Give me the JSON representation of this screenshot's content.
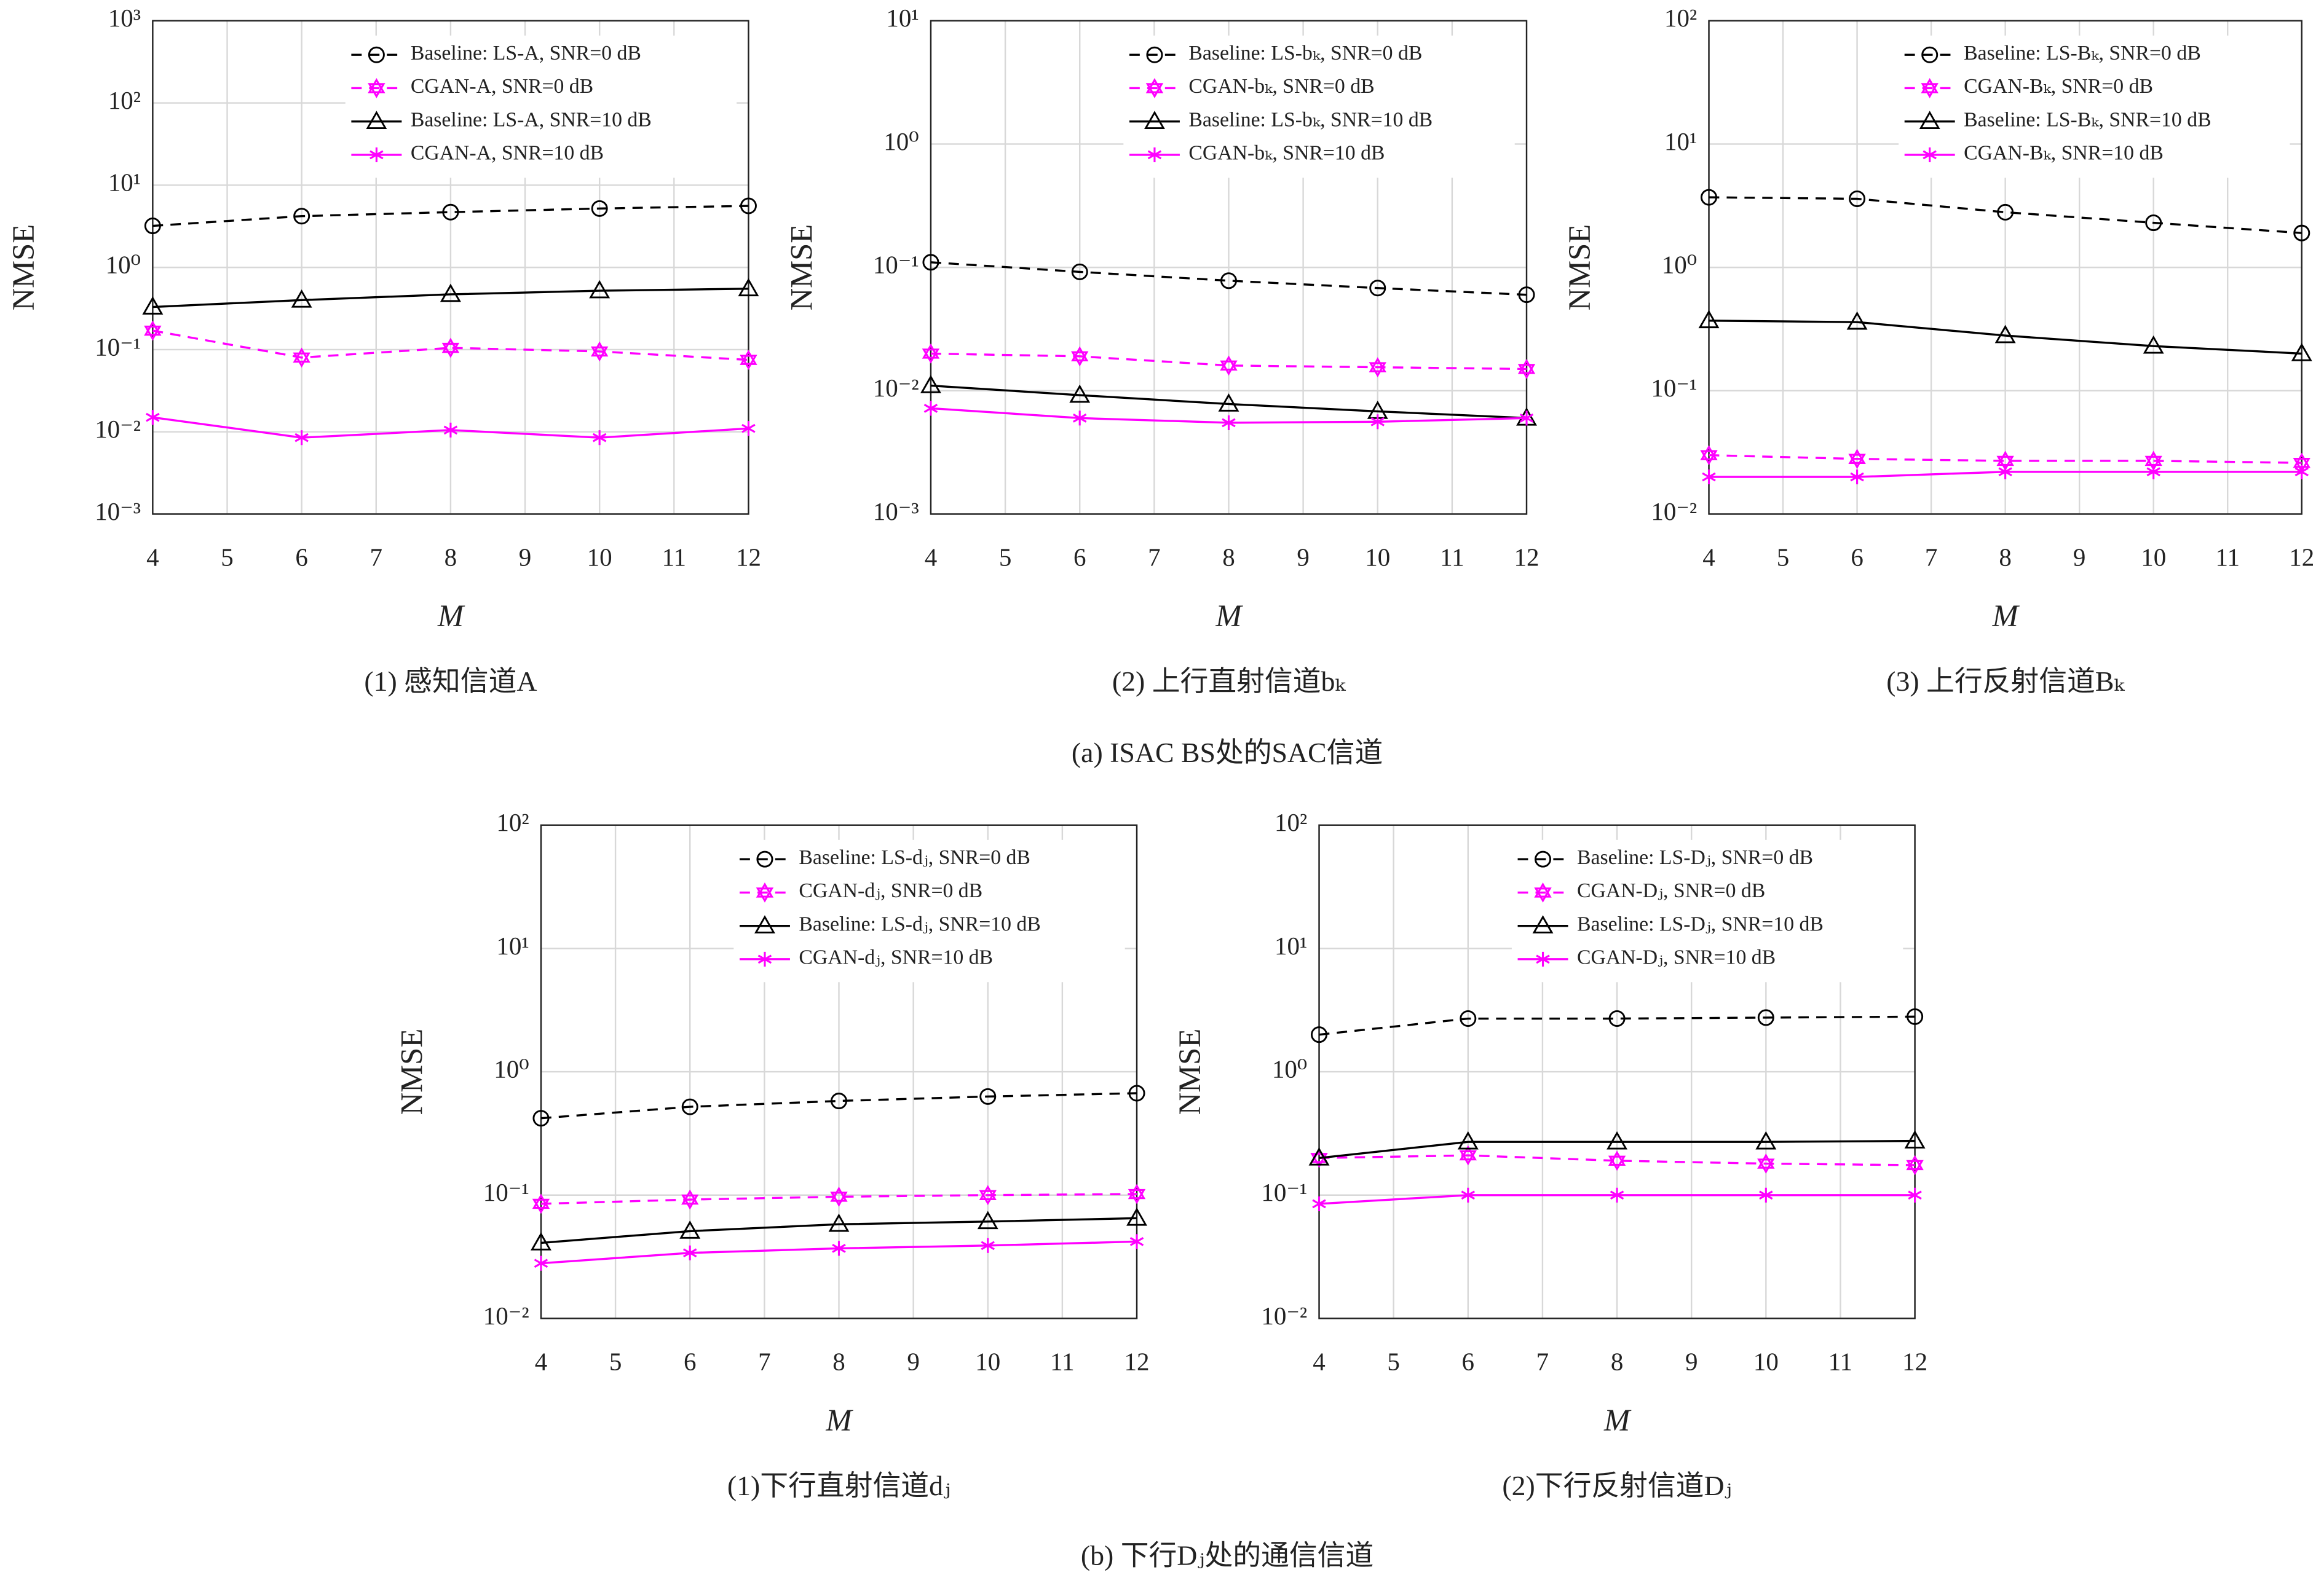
{
  "group_captions": [
    "(a) ISAC BS处的SAC信道",
    "(b) 下行Dⱼ处的通信信道"
  ],
  "chart_data": [
    {
      "type": "line",
      "subtitle": "(1) 感知信道A",
      "xlabel": "M",
      "ylabel": "NMSE",
      "log_y": true,
      "grid": true,
      "legend": "upper right",
      "x": [
        4,
        6,
        8,
        10,
        12
      ],
      "xlim": [
        4,
        12
      ],
      "xticks": [
        4,
        5,
        6,
        7,
        8,
        9,
        10,
        11,
        12
      ],
      "ylim": [
        0.001,
        1000
      ],
      "yticks": [
        {
          "value": 0.001,
          "label": "10⁻³"
        },
        {
          "value": 0.01,
          "label": "10⁻²"
        },
        {
          "value": 0.1,
          "label": "10⁻¹"
        },
        {
          "value": 1,
          "label": "10⁰"
        },
        {
          "value": 10,
          "label": "10¹"
        },
        {
          "value": 100,
          "label": "10²"
        },
        {
          "value": 1000,
          "label": "10³"
        }
      ],
      "series": [
        {
          "name": "Baseline: LS-A, SNR=0 dB",
          "color": "#000000",
          "dash": true,
          "marker": "circle",
          "values": [
            3.2,
            4.2,
            4.7,
            5.2,
            5.6
          ]
        },
        {
          "name": "CGAN-A, SNR=0 dB",
          "color": "#ff00ff",
          "dash": true,
          "marker": "hexagram",
          "values": [
            0.17,
            0.08,
            0.105,
            0.095,
            0.075
          ]
        },
        {
          "name": "Baseline: LS-A, SNR=10 dB",
          "color": "#000000",
          "dash": false,
          "marker": "triangle",
          "values": [
            0.33,
            0.4,
            0.47,
            0.52,
            0.55
          ]
        },
        {
          "name": "CGAN-A, SNR=10 dB",
          "color": "#ff00ff",
          "dash": false,
          "marker": "asterisk",
          "values": [
            0.015,
            0.0085,
            0.0105,
            0.0085,
            0.011
          ]
        }
      ]
    },
    {
      "type": "line",
      "subtitle": "(2) 上行直射信道bₖ",
      "xlabel": "M",
      "ylabel": "NMSE",
      "log_y": true,
      "grid": true,
      "legend": "upper right",
      "x": [
        4,
        6,
        8,
        10,
        12
      ],
      "xlim": [
        4,
        12
      ],
      "xticks": [
        4,
        5,
        6,
        7,
        8,
        9,
        10,
        11,
        12
      ],
      "ylim": [
        0.001,
        10
      ],
      "yticks": [
        {
          "value": 0.001,
          "label": "10⁻³"
        },
        {
          "value": 0.01,
          "label": "10⁻²"
        },
        {
          "value": 0.1,
          "label": "10⁻¹"
        },
        {
          "value": 1,
          "label": "10⁰"
        },
        {
          "value": 10,
          "label": "10¹"
        }
      ],
      "series": [
        {
          "name": "Baseline: LS-bₖ, SNR=0 dB",
          "color": "#000000",
          "dash": true,
          "marker": "circle",
          "values": [
            0.11,
            0.092,
            0.078,
            0.068,
            0.06
          ]
        },
        {
          "name": "CGAN-bₖ, SNR=0 dB",
          "color": "#ff00ff",
          "dash": true,
          "marker": "hexagram",
          "values": [
            0.02,
            0.019,
            0.016,
            0.0155,
            0.015
          ]
        },
        {
          "name": "Baseline: LS-bₖ, SNR=10 dB",
          "color": "#000000",
          "dash": false,
          "marker": "triangle",
          "values": [
            0.011,
            0.0092,
            0.0078,
            0.0068,
            0.006
          ]
        },
        {
          "name": "CGAN-bₖ, SNR=10 dB",
          "color": "#ff00ff",
          "dash": false,
          "marker": "asterisk",
          "values": [
            0.0072,
            0.006,
            0.0055,
            0.0056,
            0.006
          ]
        }
      ]
    },
    {
      "type": "line",
      "subtitle": "(3) 上行反射信道Bₖ",
      "xlabel": "M",
      "ylabel": "NMSE",
      "log_y": true,
      "grid": true,
      "legend": "upper right",
      "x": [
        4,
        6,
        8,
        10,
        12
      ],
      "xlim": [
        4,
        12
      ],
      "xticks": [
        4,
        5,
        6,
        7,
        8,
        9,
        10,
        11,
        12
      ],
      "ylim": [
        0.01,
        100
      ],
      "yticks": [
        {
          "value": 0.01,
          "label": "10⁻²"
        },
        {
          "value": 0.1,
          "label": "10⁻¹"
        },
        {
          "value": 1,
          "label": "10⁰"
        },
        {
          "value": 10,
          "label": "10¹"
        },
        {
          "value": 100,
          "label": "10²"
        }
      ],
      "series": [
        {
          "name": "Baseline: LS-Bₖ, SNR=0 dB",
          "color": "#000000",
          "dash": true,
          "marker": "circle",
          "values": [
            3.7,
            3.6,
            2.8,
            2.3,
            1.9
          ]
        },
        {
          "name": "CGAN-Bₖ, SNR=0 dB",
          "color": "#ff00ff",
          "dash": true,
          "marker": "hexagram",
          "values": [
            0.03,
            0.028,
            0.027,
            0.027,
            0.026
          ]
        },
        {
          "name": "Baseline: LS-Bₖ, SNR=10 dB",
          "color": "#000000",
          "dash": false,
          "marker": "triangle",
          "values": [
            0.37,
            0.36,
            0.28,
            0.23,
            0.2
          ]
        },
        {
          "name": "CGAN-Bₖ, SNR=10 dB",
          "color": "#ff00ff",
          "dash": false,
          "marker": "asterisk",
          "values": [
            0.02,
            0.02,
            0.022,
            0.022,
            0.022
          ]
        }
      ]
    },
    {
      "type": "line",
      "subtitle": "(1)下行直射信道dⱼ",
      "xlabel": "M",
      "ylabel": "NMSE",
      "log_y": true,
      "grid": true,
      "legend": "upper right",
      "x": [
        4,
        6,
        8,
        10,
        12
      ],
      "xlim": [
        4,
        12
      ],
      "xticks": [
        4,
        5,
        6,
        7,
        8,
        9,
        10,
        11,
        12
      ],
      "ylim": [
        0.01,
        100
      ],
      "yticks": [
        {
          "value": 0.01,
          "label": "10⁻²"
        },
        {
          "value": 0.1,
          "label": "10⁻¹"
        },
        {
          "value": 1,
          "label": "10⁰"
        },
        {
          "value": 10,
          "label": "10¹"
        },
        {
          "value": 100,
          "label": "10²"
        }
      ],
      "series": [
        {
          "name": "Baseline: LS-dⱼ, SNR=0 dB",
          "color": "#000000",
          "dash": true,
          "marker": "circle",
          "values": [
            0.42,
            0.52,
            0.58,
            0.63,
            0.67
          ]
        },
        {
          "name": "CGAN-dⱼ, SNR=0 dB",
          "color": "#ff00ff",
          "dash": true,
          "marker": "hexagram",
          "values": [
            0.085,
            0.092,
            0.097,
            0.1,
            0.102
          ]
        },
        {
          "name": "Baseline: LS-dⱼ, SNR=10 dB",
          "color": "#000000",
          "dash": false,
          "marker": "triangle",
          "values": [
            0.041,
            0.051,
            0.058,
            0.061,
            0.065
          ]
        },
        {
          "name": "CGAN-dⱼ, SNR=10 dB",
          "color": "#ff00ff",
          "dash": false,
          "marker": "asterisk",
          "values": [
            0.028,
            0.034,
            0.037,
            0.039,
            0.042
          ]
        }
      ]
    },
    {
      "type": "line",
      "subtitle": "(2)下行反射信道Dⱼ",
      "xlabel": "M",
      "ylabel": "NMSE",
      "log_y": true,
      "grid": true,
      "legend": "upper right",
      "x": [
        4,
        6,
        8,
        10,
        12
      ],
      "xlim": [
        4,
        12
      ],
      "xticks": [
        4,
        5,
        6,
        7,
        8,
        9,
        10,
        11,
        12
      ],
      "ylim": [
        0.01,
        100
      ],
      "yticks": [
        {
          "value": 0.01,
          "label": "10⁻²"
        },
        {
          "value": 0.1,
          "label": "10⁻¹"
        },
        {
          "value": 1,
          "label": "10⁰"
        },
        {
          "value": 10,
          "label": "10¹"
        },
        {
          "value": 100,
          "label": "10²"
        }
      ],
      "series": [
        {
          "name": "Baseline: LS-Dⱼ, SNR=0 dB",
          "color": "#000000",
          "dash": true,
          "marker": "circle",
          "values": [
            2.0,
            2.7,
            2.7,
            2.75,
            2.8
          ]
        },
        {
          "name": "CGAN-Dⱼ, SNR=0 dB",
          "color": "#ff00ff",
          "dash": true,
          "marker": "hexagram",
          "values": [
            0.2,
            0.21,
            0.19,
            0.18,
            0.175
          ]
        },
        {
          "name": "Baseline: LS-Dⱼ, SNR=10 dB",
          "color": "#000000",
          "dash": false,
          "marker": "triangle",
          "values": [
            0.2,
            0.27,
            0.27,
            0.27,
            0.275
          ]
        },
        {
          "name": "CGAN-Dⱼ, SNR=10 dB",
          "color": "#ff00ff",
          "dash": false,
          "marker": "asterisk",
          "values": [
            0.085,
            0.1,
            0.1,
            0.1,
            0.1
          ]
        }
      ]
    }
  ]
}
